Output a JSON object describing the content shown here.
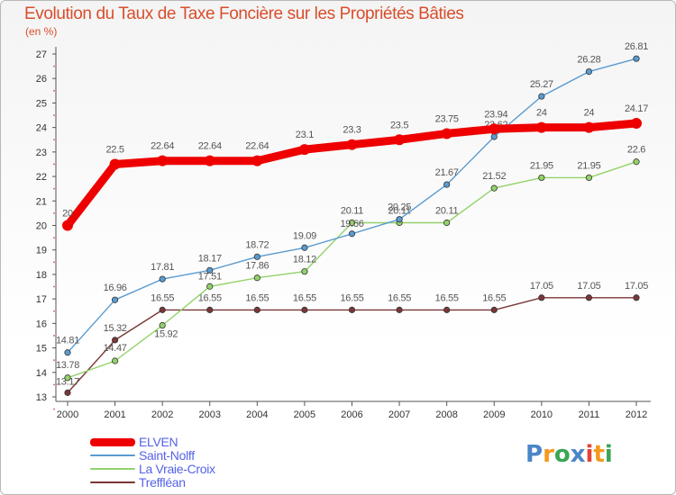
{
  "header": {
    "title": "Evolution du Taux de Taxe Foncière sur les Propriétés Bâties",
    "unit": "(en %)"
  },
  "logo": {
    "text": "Proxiti",
    "colors": [
      "#4a86c8",
      "#f39a1e",
      "#3aa655",
      "#4a86c8",
      "#e34234",
      "#f39a1e",
      "#3aa655"
    ]
  },
  "chart_data": {
    "type": "line",
    "title": "Evolution du Taux de Taxe Foncière sur les Propriétés Bâties",
    "ylabel": "(en %)",
    "xlabel": "",
    "ylim": [
      13,
      27
    ],
    "yticks": [
      13,
      14,
      15,
      16,
      17,
      18,
      19,
      20,
      21,
      22,
      23,
      24,
      25,
      26,
      27
    ],
    "categories": [
      "2000",
      "2001",
      "2002",
      "2003",
      "2004",
      "2005",
      "2006",
      "2007",
      "2008",
      "2009",
      "2010",
      "2011",
      "2012"
    ],
    "series": [
      {
        "name": "ELVEN",
        "color": "#ee0000",
        "weight": "heavy",
        "values": [
          20,
          22.5,
          22.64,
          22.64,
          22.64,
          23.1,
          23.3,
          23.5,
          23.75,
          23.94,
          24,
          24,
          24.17
        ],
        "labels": [
          "20",
          "22.5",
          "22.64",
          "22.64",
          "22.64",
          "23.1",
          "23.3",
          "23.5",
          "23.75",
          "23.94",
          "24",
          "24",
          "24.17"
        ]
      },
      {
        "name": "Saint-Nolff",
        "color": "#5a9bd0",
        "weight": "light",
        "values": [
          14.81,
          16.96,
          17.81,
          18.17,
          18.72,
          19.09,
          19.66,
          20.25,
          21.67,
          23.62,
          25.27,
          26.28,
          26.81
        ],
        "labels": [
          "14.81",
          "16.96",
          "17.81",
          "18.17",
          "18.72",
          "19.09",
          "19.66",
          "20.25",
          "21.67",
          "23.62",
          "25.27",
          "26.28",
          "26.81"
        ]
      },
      {
        "name": "La Vraie-Croix",
        "color": "#93d26a",
        "weight": "light",
        "values": [
          13.78,
          14.47,
          15.92,
          17.51,
          17.86,
          18.12,
          20.11,
          20.11,
          20.11,
          21.52,
          21.95,
          21.95,
          22.6
        ],
        "labels": [
          "13.78",
          "14.47",
          "15.92",
          "17.51",
          "17.86",
          "18.12",
          "20.11",
          "20.11",
          "20.11",
          "21.52",
          "21.95",
          "21.95",
          "22.6"
        ]
      },
      {
        "name": "Treffléan",
        "color": "#7a3737",
        "weight": "light",
        "values": [
          13.17,
          15.32,
          16.55,
          16.55,
          16.55,
          16.55,
          16.55,
          16.55,
          16.55,
          16.55,
          17.05,
          17.05,
          17.05
        ],
        "labels": [
          "13.17",
          "15.32",
          "16.55",
          "16.55",
          "16.55",
          "16.55",
          "16.55",
          "16.55",
          "16.55",
          "16.55",
          "17.05",
          "17.05",
          "17.05"
        ]
      }
    ],
    "legend": [
      "ELVEN",
      "Saint-Nolff",
      "La Vraie-Croix",
      "Treffléan"
    ],
    "legend_position": "bottom-left",
    "grid": false
  }
}
